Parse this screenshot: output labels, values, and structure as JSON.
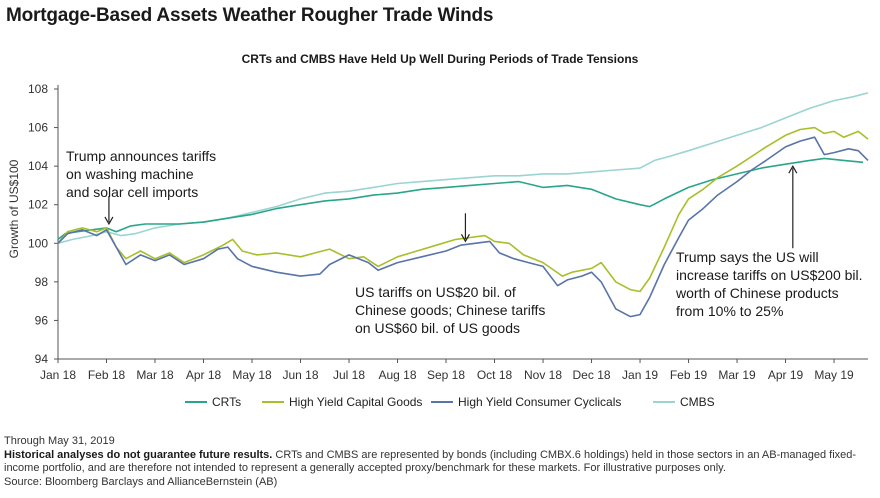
{
  "title": "Mortgage-Based Assets Weather Rougher Trade Winds",
  "chart_data": {
    "type": "line",
    "title": "CRTs and CMBS Have Held Up Well During Periods of Trade Tensions",
    "xlabel": "",
    "ylabel": "Growth of US$100",
    "ylim": [
      94,
      108
    ],
    "yticks": [
      94,
      96,
      98,
      100,
      102,
      104,
      106,
      108
    ],
    "xlim": [
      0,
      16.7
    ],
    "xtick_labels": [
      "Jan 18",
      "Feb 18",
      "Mar 18",
      "Apr 18",
      "May 18",
      "Jun 18",
      "Jul 18",
      "Aug 18",
      "Sep 18",
      "Oct 18",
      "Nov 18",
      "Dec 18",
      "Jan 19",
      "Feb 19",
      "Mar 19",
      "Apr 19",
      "May 19"
    ],
    "grid": false,
    "legend_position": "bottom",
    "series": [
      {
        "name": "CRTs",
        "color": "#2aa58a",
        "points": [
          [
            0,
            100.2
          ],
          [
            0.15,
            100.5
          ],
          [
            0.4,
            100.6
          ],
          [
            0.7,
            100.7
          ],
          [
            1.0,
            100.8
          ],
          [
            1.2,
            100.6
          ],
          [
            1.5,
            100.9
          ],
          [
            1.8,
            101.0
          ],
          [
            2.5,
            101.0
          ],
          [
            3.0,
            101.1
          ],
          [
            3.5,
            101.3
          ],
          [
            4.0,
            101.5
          ],
          [
            4.5,
            101.8
          ],
          [
            5.0,
            102.0
          ],
          [
            5.5,
            102.2
          ],
          [
            6.0,
            102.3
          ],
          [
            6.5,
            102.5
          ],
          [
            7.0,
            102.6
          ],
          [
            7.5,
            102.8
          ],
          [
            8.0,
            102.9
          ],
          [
            8.5,
            103.0
          ],
          [
            9.0,
            103.1
          ],
          [
            9.5,
            103.2
          ],
          [
            10.0,
            102.9
          ],
          [
            10.5,
            103.0
          ],
          [
            11.0,
            102.8
          ],
          [
            11.5,
            102.3
          ],
          [
            12.0,
            102.0
          ],
          [
            12.2,
            101.9
          ],
          [
            12.5,
            102.3
          ],
          [
            13.0,
            102.9
          ],
          [
            13.5,
            103.3
          ],
          [
            14.0,
            103.6
          ],
          [
            14.5,
            103.9
          ],
          [
            15.0,
            104.1
          ],
          [
            15.5,
            104.3
          ],
          [
            15.8,
            104.4
          ],
          [
            16.2,
            104.3
          ],
          [
            16.6,
            104.2
          ]
        ]
      },
      {
        "name": "High Yield Capital Goods",
        "color": "#a8bf2a",
        "points": [
          [
            0,
            100.0
          ],
          [
            0.2,
            100.6
          ],
          [
            0.5,
            100.8
          ],
          [
            0.8,
            100.6
          ],
          [
            1.0,
            100.8
          ],
          [
            1.2,
            99.8
          ],
          [
            1.4,
            99.2
          ],
          [
            1.7,
            99.6
          ],
          [
            2.0,
            99.2
          ],
          [
            2.3,
            99.5
          ],
          [
            2.6,
            99.0
          ],
          [
            3.0,
            99.4
          ],
          [
            3.4,
            99.9
          ],
          [
            3.6,
            100.2
          ],
          [
            3.8,
            99.6
          ],
          [
            4.1,
            99.4
          ],
          [
            4.5,
            99.5
          ],
          [
            5.0,
            99.3
          ],
          [
            5.3,
            99.5
          ],
          [
            5.6,
            99.7
          ],
          [
            6.0,
            99.2
          ],
          [
            6.3,
            99.3
          ],
          [
            6.6,
            98.8
          ],
          [
            7.0,
            99.3
          ],
          [
            7.4,
            99.6
          ],
          [
            7.8,
            99.9
          ],
          [
            8.2,
            100.2
          ],
          [
            8.5,
            100.3
          ],
          [
            8.8,
            100.4
          ],
          [
            9.0,
            100.1
          ],
          [
            9.3,
            100.0
          ],
          [
            9.6,
            99.4
          ],
          [
            10.0,
            99.0
          ],
          [
            10.4,
            98.3
          ],
          [
            10.6,
            98.5
          ],
          [
            11.0,
            98.7
          ],
          [
            11.2,
            99.0
          ],
          [
            11.5,
            98.0
          ],
          [
            11.8,
            97.6
          ],
          [
            12.0,
            97.5
          ],
          [
            12.2,
            98.2
          ],
          [
            12.5,
            99.8
          ],
          [
            12.8,
            101.5
          ],
          [
            13.0,
            102.3
          ],
          [
            13.3,
            102.8
          ],
          [
            13.6,
            103.4
          ],
          [
            14.0,
            104.0
          ],
          [
            14.3,
            104.5
          ],
          [
            14.6,
            105.0
          ],
          [
            15.0,
            105.6
          ],
          [
            15.3,
            105.9
          ],
          [
            15.6,
            106.0
          ],
          [
            15.8,
            105.7
          ],
          [
            16.0,
            105.8
          ],
          [
            16.2,
            105.5
          ],
          [
            16.5,
            105.8
          ],
          [
            16.7,
            105.4
          ]
        ]
      },
      {
        "name": "High Yield Consumer Cyclicals",
        "color": "#5874a8",
        "points": [
          [
            0,
            100.0
          ],
          [
            0.2,
            100.5
          ],
          [
            0.5,
            100.7
          ],
          [
            0.8,
            100.4
          ],
          [
            1.0,
            100.7
          ],
          [
            1.2,
            99.8
          ],
          [
            1.4,
            98.9
          ],
          [
            1.7,
            99.4
          ],
          [
            2.0,
            99.1
          ],
          [
            2.3,
            99.4
          ],
          [
            2.6,
            98.9
          ],
          [
            3.0,
            99.2
          ],
          [
            3.3,
            99.7
          ],
          [
            3.5,
            99.8
          ],
          [
            3.7,
            99.2
          ],
          [
            4.0,
            98.8
          ],
          [
            4.5,
            98.5
          ],
          [
            5.0,
            98.3
          ],
          [
            5.4,
            98.4
          ],
          [
            5.6,
            98.9
          ],
          [
            6.0,
            99.4
          ],
          [
            6.4,
            99.0
          ],
          [
            6.6,
            98.6
          ],
          [
            7.0,
            99.0
          ],
          [
            7.5,
            99.3
          ],
          [
            8.0,
            99.6
          ],
          [
            8.3,
            99.9
          ],
          [
            8.6,
            100.0
          ],
          [
            8.9,
            100.1
          ],
          [
            9.1,
            99.5
          ],
          [
            9.4,
            99.2
          ],
          [
            9.7,
            99.0
          ],
          [
            10.0,
            98.8
          ],
          [
            10.3,
            97.8
          ],
          [
            10.5,
            98.1
          ],
          [
            10.8,
            98.3
          ],
          [
            11.0,
            98.5
          ],
          [
            11.2,
            98.0
          ],
          [
            11.5,
            96.6
          ],
          [
            11.8,
            96.2
          ],
          [
            12.0,
            96.3
          ],
          [
            12.2,
            97.2
          ],
          [
            12.5,
            98.9
          ],
          [
            12.8,
            100.3
          ],
          [
            13.0,
            101.2
          ],
          [
            13.3,
            101.8
          ],
          [
            13.6,
            102.5
          ],
          [
            14.0,
            103.2
          ],
          [
            14.3,
            103.8
          ],
          [
            14.6,
            104.3
          ],
          [
            15.0,
            105.0
          ],
          [
            15.3,
            105.3
          ],
          [
            15.6,
            105.5
          ],
          [
            15.8,
            104.6
          ],
          [
            16.0,
            104.7
          ],
          [
            16.3,
            104.9
          ],
          [
            16.5,
            104.8
          ],
          [
            16.7,
            104.3
          ]
        ]
      },
      {
        "name": "CMBS",
        "color": "#9bd4d2",
        "points": [
          [
            0,
            100.0
          ],
          [
            0.3,
            100.2
          ],
          [
            0.7,
            100.4
          ],
          [
            1.0,
            100.6
          ],
          [
            1.3,
            100.4
          ],
          [
            1.6,
            100.5
          ],
          [
            2.0,
            100.8
          ],
          [
            2.5,
            101.0
          ],
          [
            3.0,
            101.1
          ],
          [
            3.5,
            101.3
          ],
          [
            4.0,
            101.6
          ],
          [
            4.5,
            101.9
          ],
          [
            5.0,
            102.3
          ],
          [
            5.5,
            102.6
          ],
          [
            6.0,
            102.7
          ],
          [
            6.5,
            102.9
          ],
          [
            7.0,
            103.1
          ],
          [
            7.5,
            103.2
          ],
          [
            8.0,
            103.3
          ],
          [
            8.5,
            103.4
          ],
          [
            9.0,
            103.5
          ],
          [
            9.5,
            103.5
          ],
          [
            10.0,
            103.6
          ],
          [
            10.5,
            103.6
          ],
          [
            11.0,
            103.7
          ],
          [
            11.5,
            103.8
          ],
          [
            12.0,
            103.9
          ],
          [
            12.3,
            104.3
          ],
          [
            12.6,
            104.5
          ],
          [
            13.0,
            104.8
          ],
          [
            13.5,
            105.2
          ],
          [
            14.0,
            105.6
          ],
          [
            14.5,
            106.0
          ],
          [
            15.0,
            106.5
          ],
          [
            15.5,
            107.0
          ],
          [
            16.0,
            107.4
          ],
          [
            16.4,
            107.6
          ],
          [
            16.7,
            107.8
          ]
        ]
      }
    ],
    "annotations": [
      {
        "text": "Trump announces tariffs\non washing machine\nand solar cell imports",
        "x": 1.05,
        "y": 100.9
      },
      {
        "text": "US tariffs on US$20 bil. of\nChinese goods; Chinese tariffs\non US$60 bil. of US goods",
        "x": 8.4,
        "y": 100.0
      },
      {
        "text": "Trump says the US will\nincrease tariffs on US$200 bil.\nworth of Chinese products\nfrom 10% to 25%",
        "x": 15.15,
        "y": 104.1
      }
    ]
  },
  "footer": {
    "date_note": "Through May 31, 2019",
    "disclaimer_bold": "Historical analyses do not guarantee future results.",
    "disclaimer_text": " CRTs and CMBS are represented by bonds (including CMBX.6 holdings) held in those sectors in an AB-managed fixed-income portfolio, and are therefore not intended to represent a generally accepted proxy/benchmark for these markets. For illustrative purposes only.",
    "source": "Source: Bloomberg Barclays and AllianceBernstein (AB)"
  }
}
